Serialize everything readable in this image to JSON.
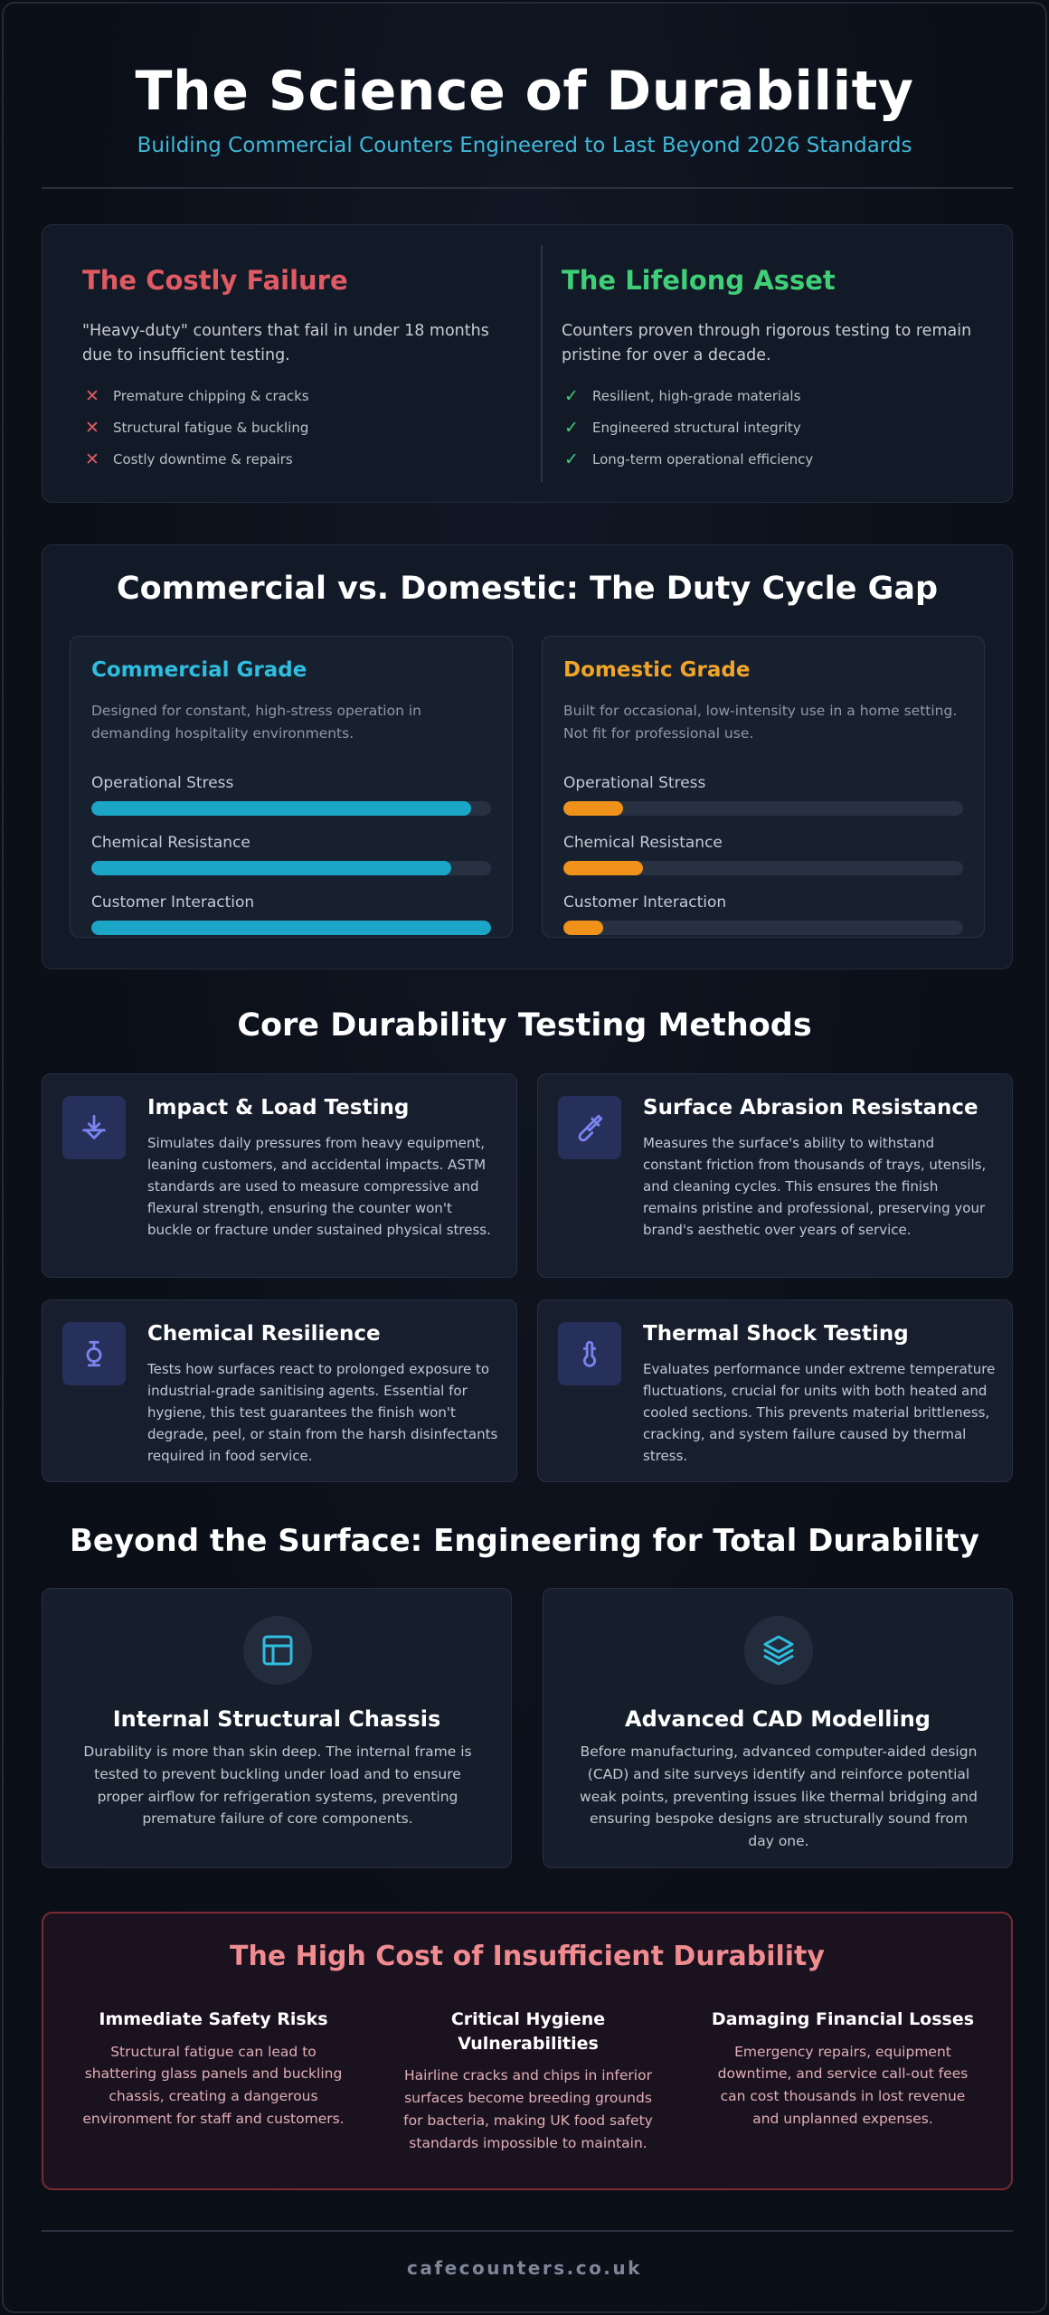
{
  "header": {
    "title": "The Science of Durability",
    "subtitle": "Building Commercial Counters Engineered to Last Beyond 2026 Standards"
  },
  "comparison": {
    "failure": {
      "title": "The Costly Failure",
      "description": "\"Heavy-duty\" counters that fail in under 18 months due to insufficient testing.",
      "items": [
        "Premature chipping & cracks",
        "Structural fatigue & buckling",
        "Costly downtime & repairs"
      ],
      "icon": "cross-icon",
      "color": "#e05a63"
    },
    "asset": {
      "title": "The Lifelong Asset",
      "description": "Counters proven through rigorous testing to remain pristine for over a decade.",
      "items": [
        "Resilient, high-grade materials",
        "Engineered structural integrity",
        "Long-term operational efficiency"
      ],
      "icon": "check-icon",
      "color": "#3fcf76"
    }
  },
  "duty_cycle": {
    "title": "Commercial vs. Domestic: The Duty Cycle Gap",
    "commercial": {
      "title": "Commercial Grade",
      "description": "Designed for constant, high-stress operation in demanding hospitality environments.",
      "color": "#1ba6c8",
      "metrics": [
        {
          "label": "Operational Stress",
          "level": 0.95
        },
        {
          "label": "Chemical Resistance",
          "level": 0.9
        },
        {
          "label": "Customer Interaction",
          "level": 1.0
        }
      ]
    },
    "domestic": {
      "title": "Domestic Grade",
      "description": "Built for occasional, low-intensity use in a home setting. Not fit for professional use.",
      "color": "#f0921a",
      "metrics": [
        {
          "label": "Operational Stress",
          "level": 0.15
        },
        {
          "label": "Chemical Resistance",
          "level": 0.2
        },
        {
          "label": "Customer Interaction",
          "level": 0.1
        }
      ]
    }
  },
  "testing": {
    "title": "Core Durability Testing Methods",
    "methods": [
      {
        "title": "Impact & Load Testing",
        "icon": "weight-load-icon",
        "description": "Simulates daily pressures from heavy equipment, leaning customers, and accidental impacts. ASTM standards are used to measure compressive and flexural strength, ensuring the counter won't buckle or fracture under sustained physical stress."
      },
      {
        "title": "Surface Abrasion Resistance",
        "icon": "brush-icon",
        "description": "Measures the surface's ability to withstand constant friction from thousands of trays, utensils, and cleaning cycles. This ensures the finish remains pristine and professional, preserving your brand's aesthetic over years of service."
      },
      {
        "title": "Chemical Resilience",
        "icon": "flask-icon",
        "description": "Tests how surfaces react to prolonged exposure to industrial-grade sanitising agents. Essential for hygiene, this test guarantees the finish won't degrade, peel, or stain from the harsh disinfectants required in food service."
      },
      {
        "title": "Thermal Shock Testing",
        "icon": "thermometer-icon",
        "description": "Evaluates performance under extreme temperature fluctuations, crucial for units with both heated and cooled sections. This prevents material brittleness, cracking, and system failure caused by thermal stress."
      }
    ]
  },
  "engineering": {
    "title": "Beyond the Surface: Engineering for Total Durability",
    "items": [
      {
        "title": "Internal Structural Chassis",
        "icon": "layout-icon",
        "description": "Durability is more than skin deep. The internal frame is tested to prevent buckling under load and to ensure proper airflow for refrigeration systems, preventing premature failure of core components."
      },
      {
        "title": "Advanced CAD Modelling",
        "icon": "layers-icon",
        "description": "Before manufacturing, advanced computer-aided design (CAD) and site surveys identify and reinforce potential weak points, preventing issues like thermal bridging and ensuring bespoke designs are structurally sound from day one."
      }
    ]
  },
  "cost": {
    "title": "The High Cost of Insufficient Durability",
    "items": [
      {
        "title": "Immediate Safety Risks",
        "description": "Structural fatigue can lead to shattering glass panels and buckling chassis, creating a dangerous environment for staff and customers."
      },
      {
        "title": "Critical Hygiene Vulnerabilities",
        "description": "Hairline cracks and chips in inferior surfaces become breeding grounds for bacteria, making UK food safety standards impossible to maintain."
      },
      {
        "title": "Damaging Financial Losses",
        "description": "Emergency repairs, equipment downtime, and service call-out fees can cost thousands in lost revenue and unplanned expenses."
      }
    ]
  },
  "footer": {
    "site": "cafecounters.co.uk"
  }
}
